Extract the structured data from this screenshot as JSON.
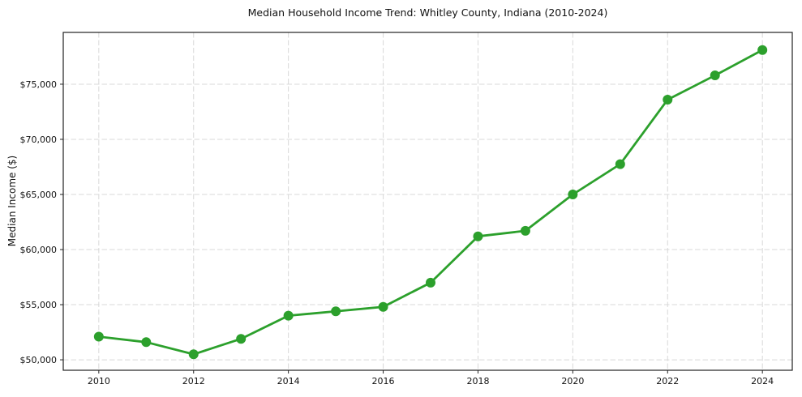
{
  "chart_data": {
    "type": "line",
    "title": "Median Household Income Trend: Whitley County, Indiana (2010-2024)",
    "xlabel": "",
    "ylabel": "Median Income ($)",
    "x": [
      2010,
      2011,
      2012,
      2013,
      2014,
      2015,
      2016,
      2017,
      2018,
      2019,
      2020,
      2021,
      2022,
      2023,
      2024
    ],
    "series": [
      {
        "name": "Median household income",
        "color": "#2ca02c",
        "marker": "circle",
        "values": [
          52100,
          51600,
          50500,
          51900,
          54000,
          54400,
          54800,
          57000,
          61200,
          61700,
          65000,
          67750,
          73600,
          75800,
          78100
        ]
      }
    ],
    "xticks": [
      2010,
      2012,
      2014,
      2016,
      2018,
      2020,
      2022,
      2024
    ],
    "xtick_labels": [
      "2010",
      "2012",
      "2014",
      "2016",
      "2018",
      "2020",
      "2022",
      "2024"
    ],
    "yticks": [
      50000,
      55000,
      60000,
      65000,
      70000,
      75000
    ],
    "ytick_labels": [
      "$50,000",
      "$55,000",
      "$60,000",
      "$65,000",
      "$70,000",
      "$75,000"
    ],
    "xlim": [
      2009.25,
      2024.63
    ],
    "ylim": [
      49050,
      79700
    ],
    "grid": true,
    "grid_style": "dashed",
    "grid_color": "#d8d8d8",
    "spine_color": "#222222",
    "legend": false
  }
}
